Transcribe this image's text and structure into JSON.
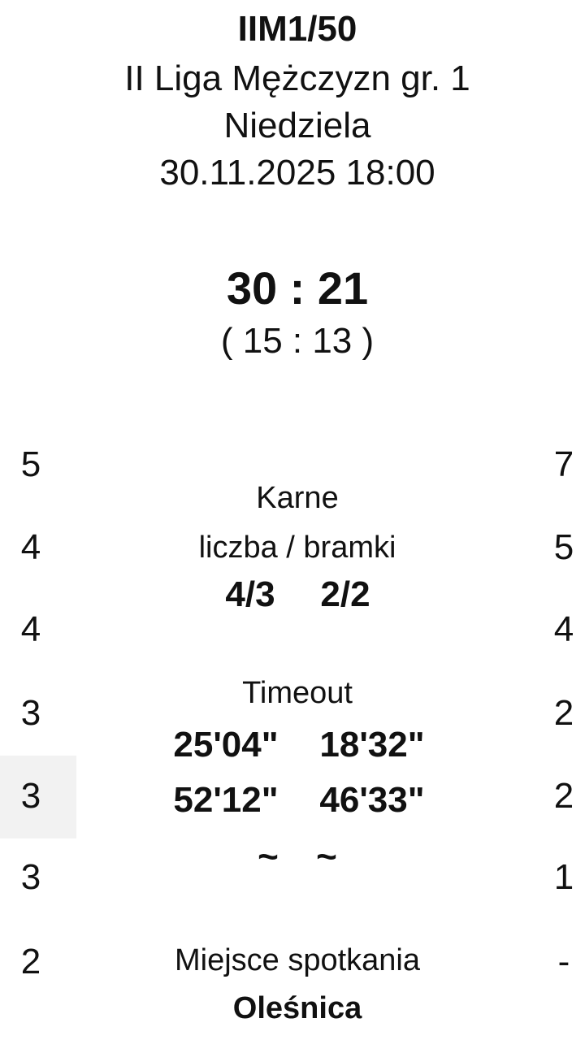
{
  "header": {
    "code": "IIM1/50",
    "league": "II Liga Mężczyzn gr. 1",
    "day": "Niedziela",
    "datetime": "30.11.2025 18:00"
  },
  "score": {
    "final": "30 : 21",
    "half": "( 15 : 13 )"
  },
  "left_column": [
    "5",
    "4",
    "4",
    "3",
    "3",
    "3",
    "2"
  ],
  "right_column": [
    "7",
    "5",
    "4",
    "2",
    "2",
    "1",
    "-"
  ],
  "penalties": {
    "title": "Karne",
    "subtitle": "liczba / bramki",
    "home": "4/3",
    "away": "2/2"
  },
  "timeout": {
    "title": "Timeout",
    "rows": [
      [
        "25'04\"",
        "18'32\""
      ],
      [
        "52'12\"",
        "46'33\""
      ],
      [
        "~",
        "~"
      ]
    ]
  },
  "venue": {
    "title": "Miejsce spotkania",
    "name": "Oleśnica"
  }
}
